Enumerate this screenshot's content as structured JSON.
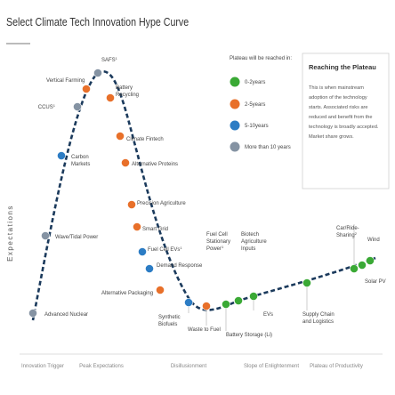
{
  "chart_data": {
    "type": "scatter",
    "title": "Select Climate Tech Innovation Hype Curve",
    "ylabel": "Expectations",
    "phases": [
      "Innovation Trigger",
      "Peak Expectations",
      "Disillusionment",
      "Slope of Enlightenment",
      "Plateau of Productivity"
    ],
    "legend": {
      "title": "Plateau will be reached in:",
      "items": [
        {
          "name": "0-2years",
          "color": "#3aa935"
        },
        {
          "name": "2-5years",
          "color": "#e8702a"
        },
        {
          "name": "5-10years",
          "color": "#2c7cc4"
        },
        {
          "name": "More than 10 years",
          "color": "#8593a3"
        }
      ]
    },
    "box": {
      "title": "Reaching the Plateau",
      "lines": [
        "This is when mainstream",
        "adoption of the technology",
        "starts. Associated risks are",
        "reduced and benefit from the",
        "technology is broadly accepted.",
        "Market share grows."
      ]
    },
    "points": [
      {
        "label": "Advanced Nuclear",
        "category": "More than 10 years"
      },
      {
        "label": "Wave/Tidal Power",
        "category": "More than 10 years"
      },
      {
        "label": "Carbon Markets",
        "category": "5-10years"
      },
      {
        "label": "CCUS",
        "sup": "1",
        "category": "More than 10 years"
      },
      {
        "label": "Vertical Farming",
        "category": "2-5years"
      },
      {
        "label": "SAFS",
        "sup": "1",
        "category": "More than 10 years"
      },
      {
        "label": "Battery Recycling",
        "category": "2-5years"
      },
      {
        "label": "Climate Fintech",
        "category": "2-5years"
      },
      {
        "label": "Alternative Proteins",
        "category": "2-5years"
      },
      {
        "label": "Precision Agriculture",
        "category": "2-5years"
      },
      {
        "label": "Smart Grid",
        "category": "2-5years"
      },
      {
        "label": "Fuel Cell EVs",
        "sup": "1",
        "category": "5-10years"
      },
      {
        "label": "Demand Response",
        "category": "5-10years"
      },
      {
        "label": "Alternative Packaging",
        "category": "2-5years"
      },
      {
        "label": "Synthetic Biofuels",
        "category": "5-10years"
      },
      {
        "label": "Waste to Fuel",
        "category": "2-5years"
      },
      {
        "label": "Fuel Cell Stationary Power",
        "sup": "1",
        "category": "2-5years"
      },
      {
        "label": "Battery Storage (Li)",
        "category": "0-2years"
      },
      {
        "label": "Biotech Agriculture Inputs",
        "category": "0-2years"
      },
      {
        "label": "EVs",
        "category": "0-2years"
      },
      {
        "label": "Supply Chain and Logistics",
        "category": "0-2years"
      },
      {
        "label": "Car/Ride-Sharing",
        "sup": "2",
        "category": "0-2years"
      },
      {
        "label": "Solar PV",
        "category": "0-2years"
      },
      {
        "label": "Wind",
        "category": "0-2years"
      }
    ]
  }
}
